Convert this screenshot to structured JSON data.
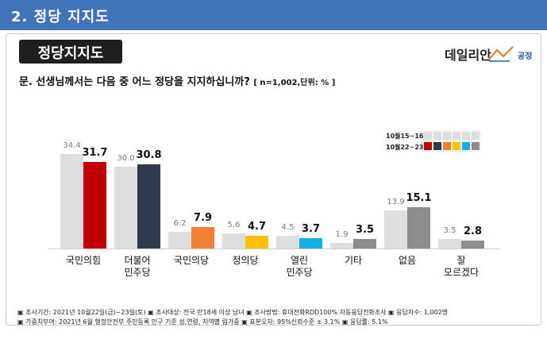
{
  "section": {
    "title": "2. 정당 지지도"
  },
  "header": {
    "chart_title": "정당지지도",
    "logo_daily": "데일리안",
    "logo_gongjeong": "공정"
  },
  "question": {
    "text": "문. 선생님께서는 다음 중 어느 정당을 지지하십니까?",
    "note": "[ n=1,002,단위: % ]"
  },
  "legend": {
    "previous": {
      "label": "10월15~16일",
      "color": "#dedede"
    },
    "current": {
      "label": "10월22~23일"
    }
  },
  "chart_data": {
    "type": "bar",
    "title": "정당지지도",
    "categories": [
      "국민의힘",
      "더불어\n민주당",
      "국민의당",
      "정의당",
      "열린\n민주당",
      "기타",
      "없음",
      "잘\n모르겠다"
    ],
    "ylim": [
      0,
      40
    ],
    "series": [
      {
        "name": "10월15~16일",
        "values": [
          34.4,
          30.0,
          6.2,
          5.6,
          4.5,
          1.9,
          13.9,
          3.5
        ],
        "colors": [
          "#dedede",
          "#dedede",
          "#dedede",
          "#dedede",
          "#dedede",
          "#dedede",
          "#dedede",
          "#dedede"
        ]
      },
      {
        "name": "10월22~23일",
        "values": [
          31.7,
          30.8,
          7.9,
          4.7,
          3.7,
          3.5,
          15.1,
          2.8
        ],
        "colors": [
          "#c00000",
          "#2f3a4d",
          "#f08030",
          "#ffc000",
          "#12b0e6",
          "#8c8c8c",
          "#8c8c8c",
          "#8c8c8c"
        ]
      }
    ]
  },
  "footer": {
    "line1": [
      "▣ 조사기간: 2021년 10월22일(금)~23일(토)",
      "▣ 조사대상: 전국 만18세 이상 남녀",
      "▣ 조사방법: 휴대전화RDD100% 자동응답전화조사",
      "▣ 응답자수: 1,002명"
    ],
    "line2": [
      "▣ 가중치부여: 2021년 6월 행정안전부 주민등록 인구 기준 성,연령, 지역별 림가중",
      "▣ 표본오차: 95%신뢰수준 ± 3.1%",
      "▣ 응답률: 5.1%"
    ]
  }
}
